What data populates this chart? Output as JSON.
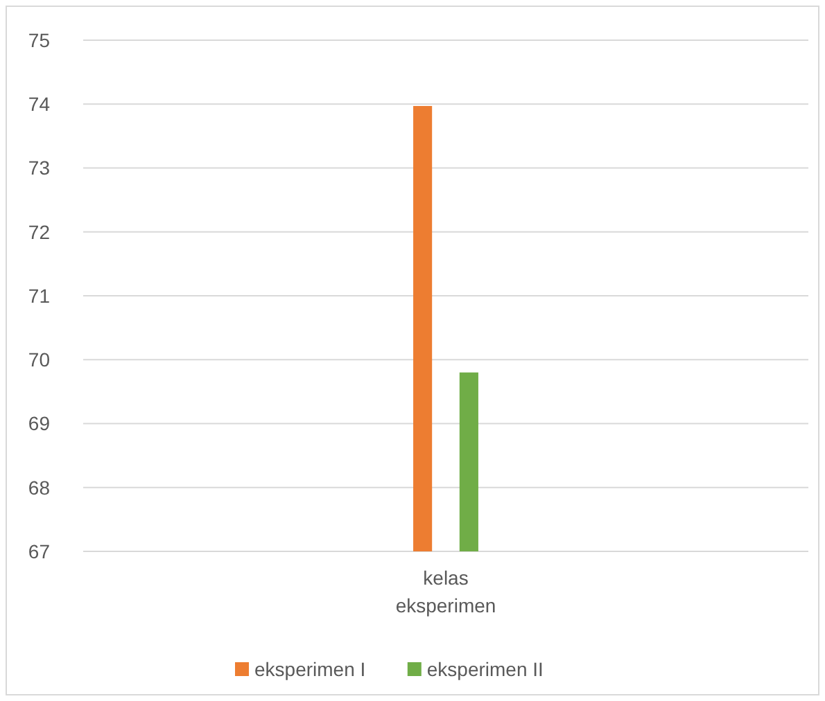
{
  "chart_data": {
    "type": "bar",
    "categories": [
      "kelas eksperimen"
    ],
    "series": [
      {
        "name": "eksperimen I",
        "color": "#ed7d31",
        "values": [
          73.97
        ]
      },
      {
        "name": "eksperimen II",
        "color": "#70ad47",
        "values": [
          69.8
        ]
      }
    ],
    "ylim": [
      67,
      75
    ],
    "yticks": [
      67,
      68,
      69,
      70,
      71,
      72,
      73,
      74,
      75
    ],
    "grid": "y",
    "legend": "bottom"
  }
}
